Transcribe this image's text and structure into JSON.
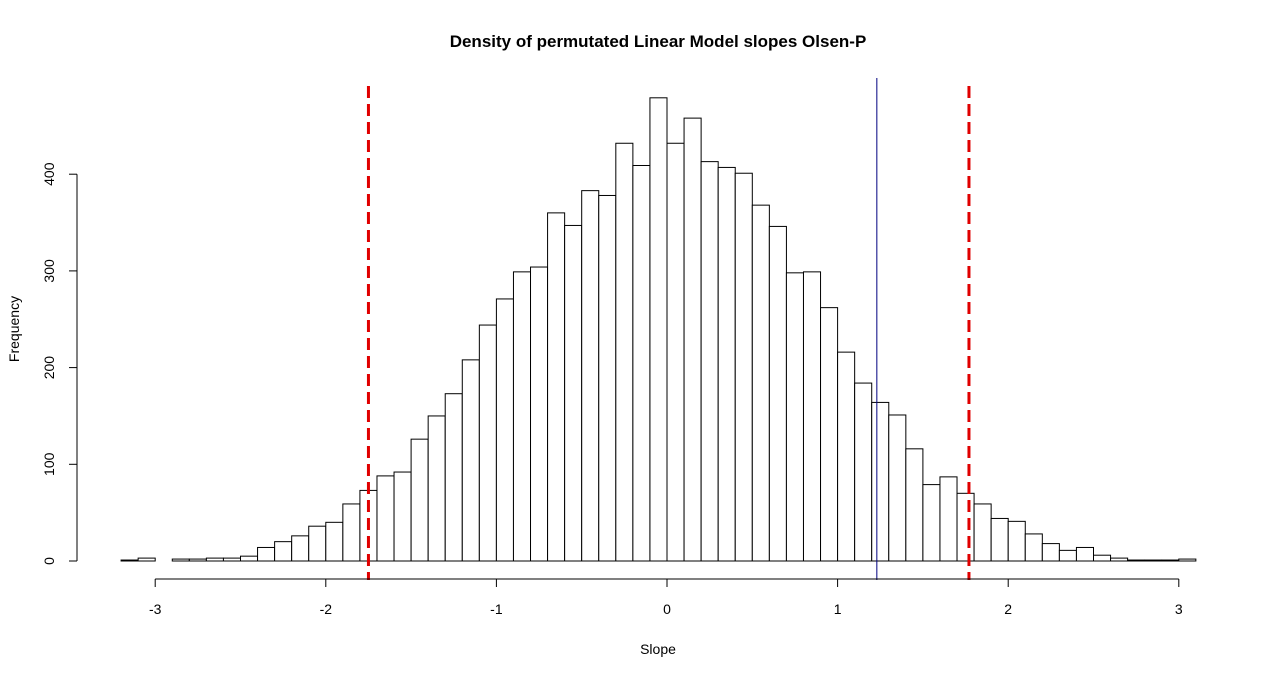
{
  "chart_data": {
    "type": "bar",
    "title": "Density of permutated Linear Model slopes Olsen-P",
    "xlabel": "Slope",
    "ylabel": "Frequency",
    "xlim": [
      -3.2,
      3.1
    ],
    "ylim": [
      0,
      500
    ],
    "x_ticks": [
      "-3",
      "-2",
      "-1",
      "0",
      "1",
      "2",
      "3"
    ],
    "y_ticks": [
      "0",
      "100",
      "200",
      "300",
      "400"
    ],
    "bin_width": 0.1,
    "bin_start": -3.2,
    "values": [
      1,
      3,
      0,
      2,
      2,
      3,
      3,
      5,
      14,
      20,
      26,
      36,
      40,
      59,
      73,
      88,
      92,
      126,
      150,
      173,
      208,
      244,
      271,
      299,
      304,
      360,
      347,
      383,
      378,
      432,
      409,
      479,
      432,
      458,
      413,
      407,
      401,
      368,
      346,
      298,
      299,
      262,
      216,
      184,
      164,
      151,
      116,
      79,
      87,
      70,
      59,
      44,
      41,
      28,
      18,
      11,
      14,
      6,
      3,
      1,
      1,
      1,
      2
    ],
    "reference_lines": [
      {
        "x": -1.75,
        "style": "dashed",
        "color": "#e00000"
      },
      {
        "x": 1.77,
        "style": "dashed",
        "color": "#e00000"
      },
      {
        "x": 1.23,
        "style": "solid",
        "color": "#000080"
      }
    ],
    "grid": false,
    "legend": "none"
  }
}
